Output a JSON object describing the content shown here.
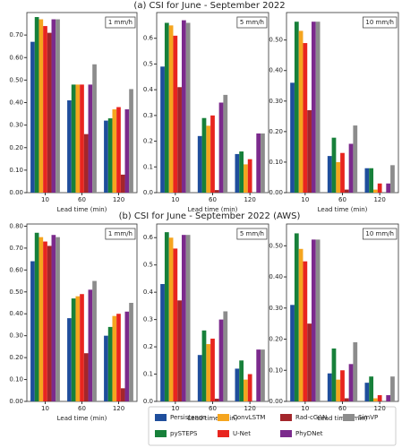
{
  "titles": [
    "(a) CSI for June - September 2022",
    "(b) CSI for June - September 2022 (AWS)"
  ],
  "legend": [
    {
      "name": "Persistence",
      "color": "#1f4e9c"
    },
    {
      "name": "pySTEPS",
      "color": "#17803a"
    },
    {
      "name": "ConvLSTM",
      "color": "#f5a51f"
    },
    {
      "name": "U-Net",
      "color": "#e8251f"
    },
    {
      "name": "Rad-cGAN",
      "color": "#a3262b"
    },
    {
      "name": "PhyDNet",
      "color": "#7b2a8c"
    },
    {
      "name": "SimVP",
      "color": "#8c8c8c"
    }
  ],
  "chart_data": [
    {
      "type": "bar",
      "annotation": "1 mm/h",
      "xlabel": "Lead time (min)",
      "categories": [
        "10",
        "60",
        "120"
      ],
      "ylim": [
        0,
        0.8
      ],
      "yticks": [
        {
          "value": 0,
          "label": "0.00"
        },
        {
          "value": 0.1,
          "label": "0.10"
        },
        {
          "value": 0.2,
          "label": "0.20"
        },
        {
          "value": 0.3,
          "label": "0.30"
        },
        {
          "value": 0.4,
          "label": "0.40"
        },
        {
          "value": 0.5,
          "label": "0.50"
        },
        {
          "value": 0.6,
          "label": "0.60"
        },
        {
          "value": 0.7,
          "label": "0.70"
        }
      ],
      "series": [
        {
          "values": [
            0.67,
            0.41,
            0.32
          ]
        },
        {
          "values": [
            0.78,
            0.48,
            0.33
          ]
        },
        {
          "values": [
            0.77,
            0.48,
            0.37
          ]
        },
        {
          "values": [
            0.74,
            0.48,
            0.38
          ]
        },
        {
          "values": [
            0.71,
            0.26,
            0.08
          ]
        },
        {
          "values": [
            0.77,
            0.48,
            0.37
          ]
        },
        {
          "values": [
            0.77,
            0.57,
            0.46
          ]
        }
      ]
    },
    {
      "type": "bar",
      "annotation": "5 mm/h",
      "xlabel": "Lead time (min)",
      "categories": [
        "10",
        "60",
        "120"
      ],
      "ylim": [
        0,
        0.7
      ],
      "yticks": [
        {
          "value": 0,
          "label": "0.0"
        },
        {
          "value": 0.1,
          "label": "0.1"
        },
        {
          "value": 0.2,
          "label": "0.2"
        },
        {
          "value": 0.3,
          "label": "0.3"
        },
        {
          "value": 0.4,
          "label": "0.4"
        },
        {
          "value": 0.5,
          "label": "0.5"
        },
        {
          "value": 0.6,
          "label": "0.6"
        }
      ],
      "series": [
        {
          "values": [
            0.49,
            0.22,
            0.15
          ]
        },
        {
          "values": [
            0.66,
            0.29,
            0.16
          ]
        },
        {
          "values": [
            0.65,
            0.26,
            0.11
          ]
        },
        {
          "values": [
            0.61,
            0.3,
            0.13
          ]
        },
        {
          "values": [
            0.41,
            0.01,
            0.0
          ]
        },
        {
          "values": [
            0.67,
            0.35,
            0.23
          ]
        },
        {
          "values": [
            0.66,
            0.38,
            0.23
          ]
        }
      ]
    },
    {
      "type": "bar",
      "annotation": "10 mm/h",
      "xlabel": "Lead time (min)",
      "categories": [
        "10",
        "60",
        "120"
      ],
      "ylim": [
        0,
        0.59
      ],
      "yticks": [
        {
          "value": 0,
          "label": "0.00"
        },
        {
          "value": 0.1,
          "label": "0.10"
        },
        {
          "value": 0.2,
          "label": "0.20"
        },
        {
          "value": 0.3,
          "label": "0.30"
        },
        {
          "value": 0.4,
          "label": "0.40"
        },
        {
          "value": 0.5,
          "label": "0.50"
        }
      ],
      "series": [
        {
          "values": [
            0.36,
            0.12,
            0.08
          ]
        },
        {
          "values": [
            0.56,
            0.18,
            0.08
          ]
        },
        {
          "values": [
            0.53,
            0.1,
            0.01
          ]
        },
        {
          "values": [
            0.49,
            0.13,
            0.03
          ]
        },
        {
          "values": [
            0.27,
            0.01,
            0.0
          ]
        },
        {
          "values": [
            0.56,
            0.16,
            0.03
          ]
        },
        {
          "values": [
            0.56,
            0.22,
            0.09
          ]
        }
      ]
    },
    {
      "type": "bar",
      "annotation": "1 mm/h",
      "xlabel": "Lead time (min)",
      "categories": [
        "10",
        "60",
        "120"
      ],
      "ylim": [
        0,
        0.81
      ],
      "yticks": [
        {
          "value": 0,
          "label": "0.00"
        },
        {
          "value": 0.1,
          "label": "0.10"
        },
        {
          "value": 0.2,
          "label": "0.20"
        },
        {
          "value": 0.3,
          "label": "0.30"
        },
        {
          "value": 0.4,
          "label": "0.40"
        },
        {
          "value": 0.5,
          "label": "0.50"
        },
        {
          "value": 0.6,
          "label": "0.60"
        },
        {
          "value": 0.7,
          "label": "0.70"
        },
        {
          "value": 0.8,
          "label": "0.80"
        }
      ],
      "series": [
        {
          "values": [
            0.64,
            0.38,
            0.3
          ]
        },
        {
          "values": [
            0.77,
            0.47,
            0.34
          ]
        },
        {
          "values": [
            0.75,
            0.48,
            0.39
          ]
        },
        {
          "values": [
            0.73,
            0.49,
            0.4
          ]
        },
        {
          "values": [
            0.71,
            0.22,
            0.06
          ]
        },
        {
          "values": [
            0.76,
            0.51,
            0.41
          ]
        },
        {
          "values": [
            0.75,
            0.55,
            0.45
          ]
        }
      ]
    },
    {
      "type": "bar",
      "annotation": "5 mm/h",
      "xlabel": "Lead time (min)",
      "categories": [
        "10",
        "60",
        "120"
      ],
      "ylim": [
        0,
        0.65
      ],
      "yticks": [
        {
          "value": 0,
          "label": "0.0"
        },
        {
          "value": 0.1,
          "label": "0.1"
        },
        {
          "value": 0.2,
          "label": "0.2"
        },
        {
          "value": 0.3,
          "label": "0.3"
        },
        {
          "value": 0.4,
          "label": "0.4"
        },
        {
          "value": 0.5,
          "label": "0.5"
        },
        {
          "value": 0.6,
          "label": "0.6"
        }
      ],
      "series": [
        {
          "values": [
            0.43,
            0.17,
            0.12
          ]
        },
        {
          "values": [
            0.62,
            0.26,
            0.15
          ]
        },
        {
          "values": [
            0.6,
            0.21,
            0.08
          ]
        },
        {
          "values": [
            0.56,
            0.23,
            0.1
          ]
        },
        {
          "values": [
            0.37,
            0.01,
            0.0
          ]
        },
        {
          "values": [
            0.61,
            0.3,
            0.19
          ]
        },
        {
          "values": [
            0.61,
            0.33,
            0.19
          ]
        }
      ]
    },
    {
      "type": "bar",
      "annotation": "10 mm/h",
      "xlabel": "Lead time (min)",
      "categories": [
        "10",
        "60",
        "120"
      ],
      "ylim": [
        0,
        0.57
      ],
      "yticks": [
        {
          "value": 0,
          "label": "0.00"
        },
        {
          "value": 0.1,
          "label": "0.10"
        },
        {
          "value": 0.2,
          "label": "0.20"
        },
        {
          "value": 0.3,
          "label": "0.30"
        },
        {
          "value": 0.4,
          "label": "0.40"
        },
        {
          "value": 0.5,
          "label": "0.50"
        }
      ],
      "series": [
        {
          "values": [
            0.31,
            0.09,
            0.06
          ]
        },
        {
          "values": [
            0.54,
            0.17,
            0.08
          ]
        },
        {
          "values": [
            0.49,
            0.07,
            0.01
          ]
        },
        {
          "values": [
            0.45,
            0.1,
            0.02
          ]
        },
        {
          "values": [
            0.25,
            0.01,
            0.0
          ]
        },
        {
          "values": [
            0.52,
            0.12,
            0.02
          ]
        },
        {
          "values": [
            0.52,
            0.19,
            0.08
          ]
        }
      ]
    }
  ]
}
